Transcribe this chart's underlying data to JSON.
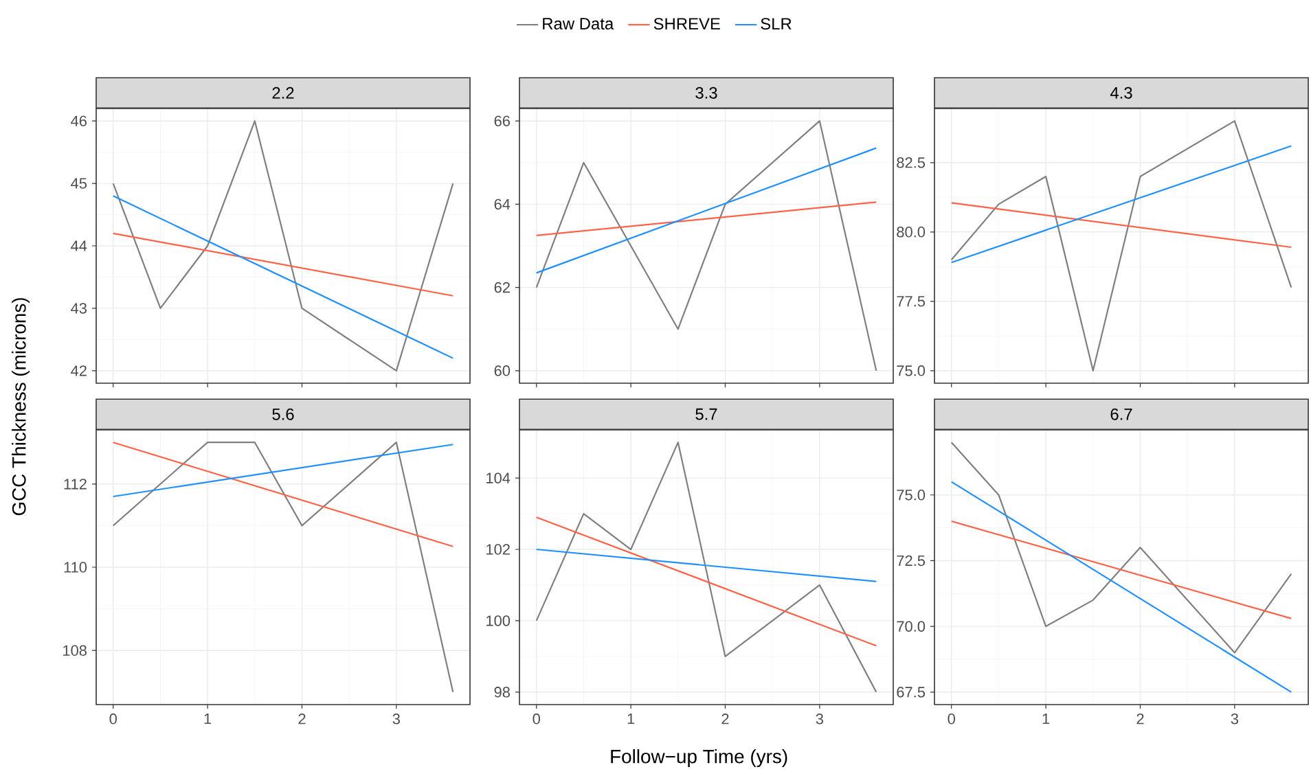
{
  "chart_data": [
    {
      "type": "line",
      "title": "2.2",
      "ylabel": "GCC Thickness (microns)",
      "legend": "top",
      "grid": true,
      "tick_labels": "y",
      "xlim": [
        -0.18,
        3.78
      ],
      "xticks": [
        0,
        1,
        2,
        3
      ],
      "ylim": [
        41.8,
        46.2
      ],
      "yticks": [
        42,
        43,
        44,
        45,
        46
      ],
      "series": [
        {
          "name": "Raw Data",
          "color": "#7f7f7f",
          "x": [
            0,
            0.5,
            1,
            1.5,
            2,
            3,
            3.6
          ],
          "values": [
            45,
            43,
            44,
            46,
            43,
            42,
            45
          ]
        },
        {
          "name": "SHREVE",
          "color": "#ff6347",
          "x": [
            0,
            3.6
          ],
          "values": [
            44.2,
            43.2
          ]
        },
        {
          "name": "SLR",
          "color": "#1e90ff",
          "x": [
            0,
            3.6
          ],
          "values": [
            44.8,
            42.2
          ]
        }
      ]
    },
    {
      "type": "line",
      "title": "3.3",
      "grid": true,
      "tick_labels": "y",
      "xlim": [
        -0.18,
        3.78
      ],
      "xticks": [
        0,
        1,
        2,
        3
      ],
      "ylim": [
        59.7,
        66.3
      ],
      "yticks": [
        60,
        62,
        64,
        66
      ],
      "series": [
        {
          "color": "#7f7f7f",
          "x": [
            0,
            0.5,
            1,
            1.5,
            2,
            3,
            3.6
          ],
          "values": [
            62,
            65,
            63,
            61,
            64,
            66,
            60
          ]
        },
        {
          "color": "#ff6347",
          "x": [
            0,
            3.6
          ],
          "values": [
            63.25,
            64.05
          ]
        },
        {
          "color": "#1e90ff",
          "x": [
            0,
            3.6
          ],
          "values": [
            62.35,
            65.35
          ]
        }
      ]
    },
    {
      "type": "line",
      "title": "4.3",
      "grid": true,
      "tick_labels": "y",
      "xlim": [
        -0.18,
        3.78
      ],
      "xticks": [
        0,
        1,
        2,
        3
      ],
      "ylim": [
        74.55,
        84.45
      ],
      "yticks": [
        {
          "value": 75,
          "label": "75.0"
        },
        {
          "value": 77.5,
          "label": "77.5"
        },
        {
          "value": 80,
          "label": "80.0"
        },
        {
          "value": 82.5,
          "label": "82.5"
        }
      ],
      "series": [
        {
          "color": "#7f7f7f",
          "x": [
            0,
            0.5,
            1,
            1.5,
            2,
            3,
            3.6
          ],
          "values": [
            79,
            81,
            82,
            75,
            82,
            84,
            78
          ]
        },
        {
          "color": "#ff6347",
          "x": [
            0,
            3.6
          ],
          "values": [
            81.05,
            79.45
          ]
        },
        {
          "color": "#1e90ff",
          "x": [
            0,
            3.6
          ],
          "values": [
            78.9,
            83.1
          ]
        }
      ]
    },
    {
      "type": "line",
      "title": "5.6",
      "grid": true,
      "xlim": [
        -0.18,
        3.78
      ],
      "xticks": [
        0,
        1,
        2,
        3
      ],
      "ylim": [
        106.7,
        113.3
      ],
      "yticks": [
        108,
        110,
        112
      ],
      "series": [
        {
          "color": "#7f7f7f",
          "x": [
            0,
            0.5,
            1,
            1.5,
            2,
            3,
            3.6
          ],
          "values": [
            111,
            112,
            113,
            113,
            111,
            113,
            107
          ]
        },
        {
          "color": "#ff6347",
          "x": [
            0,
            3.6
          ],
          "values": [
            113,
            110.5
          ]
        },
        {
          "color": "#1e90ff",
          "x": [
            0,
            3.6
          ],
          "values": [
            111.7,
            112.95
          ]
        }
      ]
    },
    {
      "type": "line",
      "title": "5.7",
      "xlabel": "Follow−up Time (yrs)",
      "grid": true,
      "xlim": [
        -0.18,
        3.78
      ],
      "xticks": [
        0,
        1,
        2,
        3
      ],
      "ylim": [
        97.65,
        105.35
      ],
      "yticks": [
        98,
        100,
        102,
        104
      ],
      "series": [
        {
          "color": "#7f7f7f",
          "x": [
            0,
            0.5,
            1,
            1.5,
            2,
            3,
            3.6
          ],
          "values": [
            100,
            103,
            102,
            105,
            99,
            101,
            98
          ]
        },
        {
          "color": "#ff6347",
          "x": [
            0,
            3.6
          ],
          "values": [
            102.9,
            99.3
          ]
        },
        {
          "color": "#1e90ff",
          "x": [
            0,
            3.6
          ],
          "values": [
            102.0,
            101.1
          ]
        }
      ]
    },
    {
      "type": "line",
      "title": "6.7",
      "grid": true,
      "xlim": [
        -0.18,
        3.78
      ],
      "xticks": [
        0,
        1,
        2,
        3
      ],
      "ylim": [
        67.025,
        77.475
      ],
      "yticks": [
        {
          "value": 67.5,
          "label": "67.5"
        },
        {
          "value": 70,
          "label": "70.0"
        },
        {
          "value": 72.5,
          "label": "72.5"
        },
        {
          "value": 75,
          "label": "75.0"
        }
      ],
      "series": [
        {
          "color": "#7f7f7f",
          "x": [
            0,
            0.5,
            1,
            1.5,
            2,
            3,
            3.6
          ],
          "values": [
            77,
            75,
            70,
            71,
            73,
            69,
            72
          ]
        },
        {
          "color": "#ff6347",
          "x": [
            0,
            3.6
          ],
          "values": [
            74.0,
            70.3
          ]
        },
        {
          "color": "#1e90ff",
          "x": [
            0,
            3.6
          ],
          "values": [
            75.5,
            67.5
          ]
        }
      ]
    }
  ]
}
